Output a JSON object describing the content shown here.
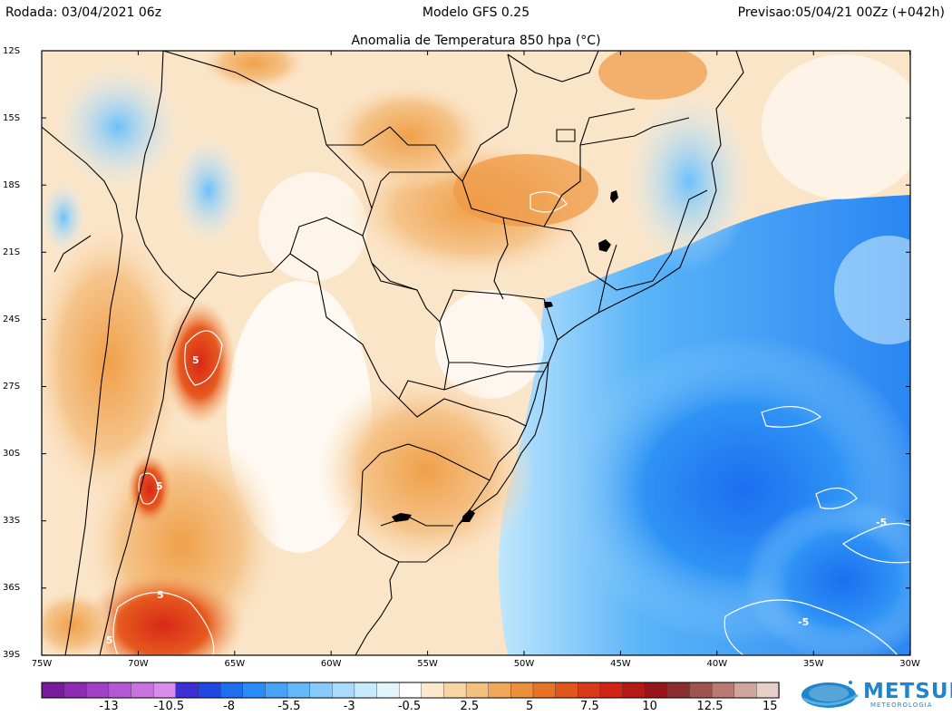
{
  "header": {
    "left": "Rodada: 03/04/2021 06z",
    "center": "Modelo GFS 0.25",
    "right": "Previsao:05/04/21 00Zz (+042h)"
  },
  "map": {
    "title": "Anomalia de Temperatura 850 hpa (°C)",
    "lat_labels": [
      "12S",
      "15S",
      "18S",
      "21S",
      "24S",
      "27S",
      "30S",
      "33S",
      "36S",
      "39S"
    ],
    "lon_labels": [
      "75W",
      "70W",
      "65W",
      "60W",
      "55W",
      "50W",
      "45W",
      "40W",
      "35W",
      "30W"
    ],
    "contour_labels": [
      "5",
      "5",
      "5",
      "5",
      "-5",
      "-5"
    ]
  },
  "colorbar": {
    "labels": [
      "-13",
      "-10.5",
      "-8",
      "-5.5",
      "-3",
      "-0.5",
      "2.5",
      "5",
      "7.5",
      "10",
      "12.5",
      "15"
    ],
    "colors": [
      "#7a1a9e",
      "#8e2ab3",
      "#a23fc7",
      "#b657d6",
      "#c772df",
      "#d68ee8",
      "#3c2fd3",
      "#2148e0",
      "#1d6ff0",
      "#2b8cf5",
      "#45a4f7",
      "#63b8fa",
      "#86cbfb",
      "#a9dcfc",
      "#c8eafd",
      "#e2f4fe",
      "#ffffff",
      "#fbe8cd",
      "#f7d5a5",
      "#f3c07e",
      "#efa85a",
      "#eb8f3b",
      "#e67426",
      "#e0561d",
      "#d93a18",
      "#cf2416",
      "#b41a17",
      "#94161a",
      "#8b2e2e",
      "#a0544f",
      "#b97b72",
      "#d0a59b",
      "#e6cfc6"
    ]
  },
  "logo": {
    "name": "METSUL",
    "sub": "METEOROLOGIA"
  }
}
